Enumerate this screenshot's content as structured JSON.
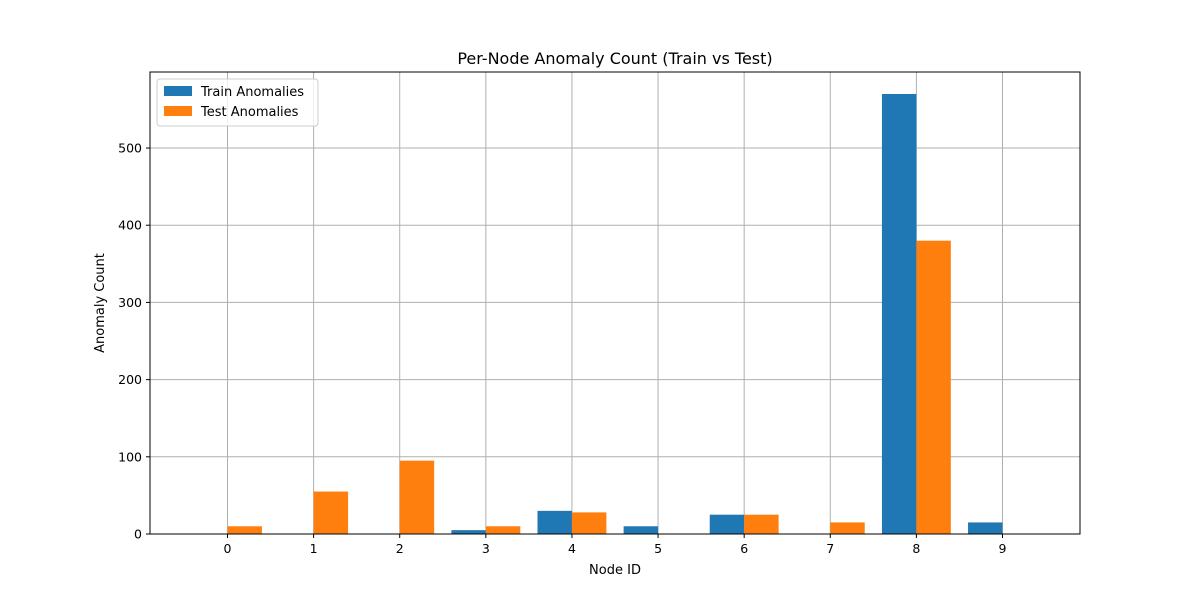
{
  "chart_data": {
    "type": "bar",
    "title": "Per-Node Anomaly Count (Train vs Test)",
    "xlabel": "Node ID",
    "ylabel": "Anomaly Count",
    "categories": [
      "0",
      "1",
      "2",
      "3",
      "4",
      "5",
      "6",
      "7",
      "8",
      "9"
    ],
    "series": [
      {
        "name": "Train Anomalies",
        "color": "#1f77b4",
        "values": [
          0,
          0,
          0,
          5,
          30,
          10,
          25,
          0,
          570,
          15
        ]
      },
      {
        "name": "Test Anomalies",
        "color": "#ff7f0e",
        "values": [
          10,
          55,
          95,
          10,
          28,
          0,
          25,
          15,
          380,
          0
        ]
      }
    ],
    "xlim": [
      -0.9,
      9.9
    ],
    "ylim": [
      0,
      598.5
    ],
    "yticks": [
      0,
      100,
      200,
      300,
      400,
      500
    ],
    "grid": true,
    "legend_position": "upper-left"
  }
}
